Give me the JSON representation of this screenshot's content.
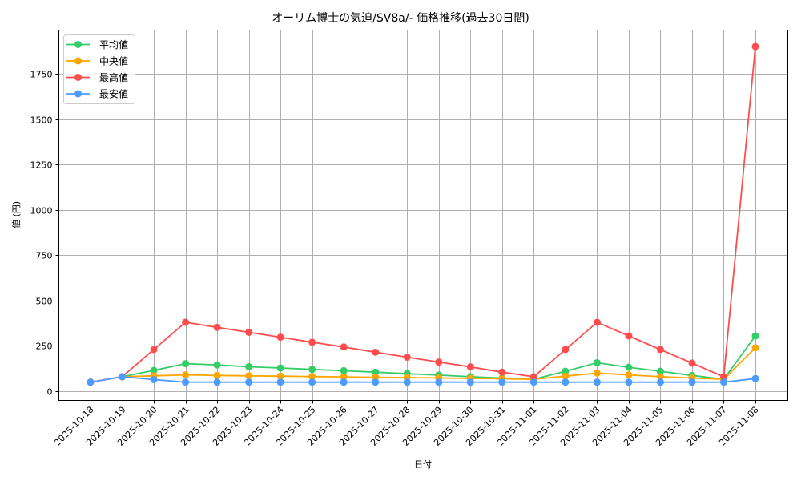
{
  "chart_data": {
    "type": "line",
    "title": "オーリム博士の気迫/SV8a/- 価格推移(過去30日間)",
    "xlabel": "日付",
    "ylabel": "値 (円)",
    "ylim": [
      -50,
      1980
    ],
    "yticks": [
      0,
      250,
      500,
      750,
      1000,
      1250,
      1500,
      1750
    ],
    "grid": true,
    "legend_position": "upper left",
    "categories": [
      "2025-10-18",
      "2025-10-19",
      "2025-10-20",
      "2025-10-21",
      "2025-10-22",
      "2025-10-23",
      "2025-10-24",
      "2025-10-25",
      "2025-10-26",
      "2025-10-27",
      "2025-10-28",
      "2025-10-29",
      "2025-10-30",
      "2025-10-31",
      "2025-11-01",
      "2025-11-02",
      "2025-11-03",
      "2025-11-04",
      "2025-11-05",
      "2025-11-06",
      "2025-11-07",
      "2025-11-08"
    ],
    "series": [
      {
        "name": "平均値",
        "color": "#33cc66",
        "values": [
          50,
          80,
          115,
          152,
          145,
          135,
          128,
          120,
          113,
          105,
          97,
          89,
          80,
          72,
          66,
          110,
          157,
          132,
          110,
          87,
          66,
          305
        ]
      },
      {
        "name": "中央値",
        "color": "#ffa500",
        "values": [
          50,
          80,
          85,
          90,
          87,
          85,
          83,
          81,
          79,
          77,
          75,
          73,
          71,
          69,
          66,
          83,
          100,
          90,
          80,
          73,
          66,
          240
        ]
      },
      {
        "name": "最高値",
        "color": "#ff4d4d",
        "values": [
          50,
          80,
          230,
          380,
          352,
          325,
          298,
          270,
          244,
          215,
          188,
          161,
          134,
          105,
          80,
          230,
          380,
          305,
          230,
          155,
          80,
          1900
        ]
      },
      {
        "name": "最安値",
        "color": "#4d9bff",
        "values": [
          50,
          80,
          64,
          50,
          50,
          50,
          50,
          50,
          50,
          50,
          50,
          50,
          50,
          50,
          50,
          50,
          50,
          50,
          50,
          50,
          50,
          70
        ]
      }
    ]
  }
}
